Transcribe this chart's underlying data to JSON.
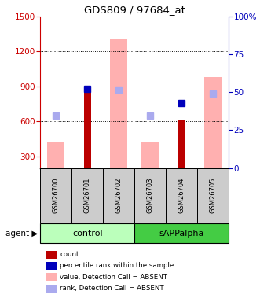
{
  "title": "GDS809 / 97684_at",
  "samples": [
    "GSM26700",
    "GSM26701",
    "GSM26702",
    "GSM26703",
    "GSM26704",
    "GSM26705"
  ],
  "ylim_left": [
    200,
    1500
  ],
  "ylim_right": [
    0,
    100
  ],
  "yticks_left": [
    300,
    600,
    900,
    1200,
    1500
  ],
  "yticks_right": [
    0,
    25,
    50,
    75,
    100
  ],
  "left_axis_color": "#cc0000",
  "right_axis_color": "#0000bb",
  "bar_values_red": [
    null,
    880,
    null,
    null,
    615,
    null
  ],
  "bar_values_pink": [
    430,
    null,
    1310,
    430,
    null,
    980
  ],
  "dot_values_blue": [
    null,
    880,
    null,
    null,
    760,
    null
  ],
  "dot_values_lightblue": [
    650,
    null,
    870,
    650,
    null,
    840
  ],
  "pink_bar_color": "#ffb0b0",
  "red_bar_color": "#bb0000",
  "blue_dot_color": "#0000bb",
  "lightblue_dot_color": "#aaaaee",
  "ctrl_color_light": "#bbffbb",
  "ctrl_color_dark": "#55dd55",
  "sapp_color": "#44cc44",
  "sample_bg": "#cccccc",
  "legend_items": [
    {
      "label": "count",
      "color": "#bb0000"
    },
    {
      "label": "percentile rank within the sample",
      "color": "#0000bb"
    },
    {
      "label": "value, Detection Call = ABSENT",
      "color": "#ffb0b0"
    },
    {
      "label": "rank, Detection Call = ABSENT",
      "color": "#aaaaee"
    }
  ]
}
